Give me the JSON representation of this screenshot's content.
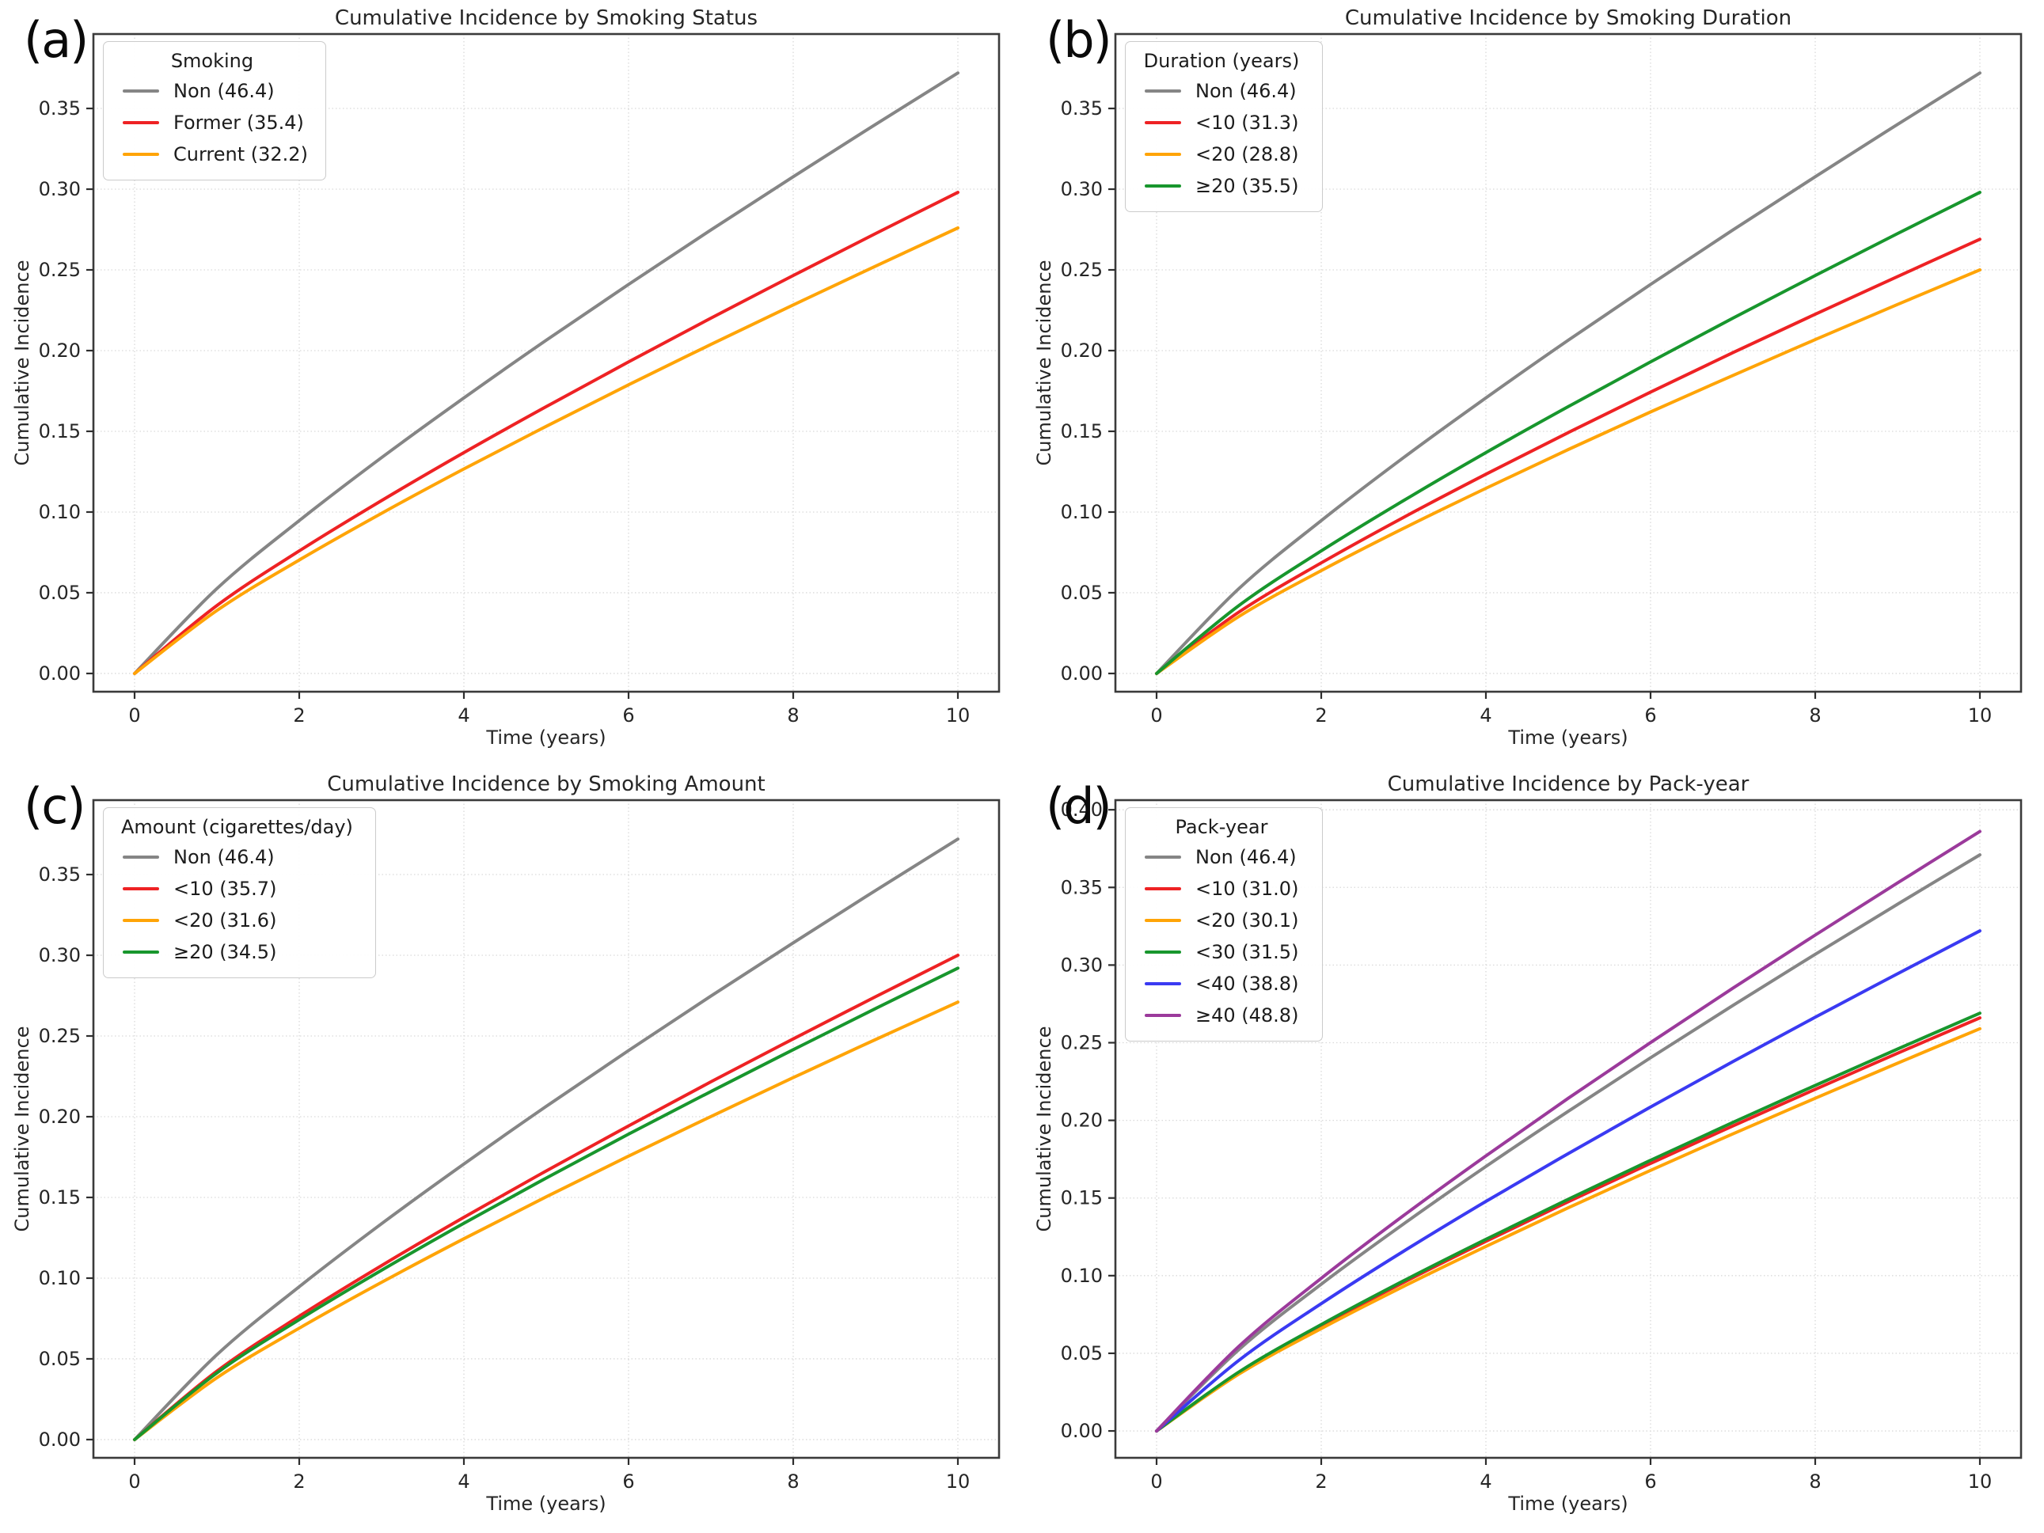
{
  "chart_data": [
    {
      "id": "a",
      "panel_label": "(a)",
      "type": "line",
      "title": "Cumulative Incidence by Smoking Status",
      "xlabel": "Time (years)",
      "ylabel": "Cumulative Incidence",
      "legend_title": "Smoking",
      "legend_position": "upper left",
      "grid": "dotted",
      "xlim": [
        -0.5,
        10.5
      ],
      "ylim": [
        -0.0113,
        0.3961
      ],
      "x_ticks": [
        0,
        2,
        4,
        6,
        8,
        10
      ],
      "y_ticks": [
        "0.00",
        "0.05",
        "0.10",
        "0.15",
        "0.20",
        "0.25",
        "0.30",
        "0.35"
      ],
      "x": [
        0,
        1,
        2,
        3,
        4,
        5,
        6,
        7,
        8,
        9,
        10
      ],
      "series": [
        {
          "name": "Non (46.4)",
          "color": "#858585",
          "values": [
            0,
            0.0526,
            0.0947,
            0.1337,
            0.1707,
            0.2064,
            0.241,
            0.2747,
            0.3077,
            0.3401,
            0.372
          ]
        },
        {
          "name": "Former (35.4)",
          "color": "#ee2224",
          "values": [
            0,
            0.0421,
            0.0759,
            0.1071,
            0.1368,
            0.1653,
            0.193,
            0.2201,
            0.2465,
            0.2725,
            0.298
          ]
        },
        {
          "name": "Current (32.2)",
          "color": "#ffa407",
          "values": [
            0,
            0.039,
            0.0703,
            0.0992,
            0.1267,
            0.1531,
            0.1788,
            0.2038,
            0.2283,
            0.2523,
            0.276
          ]
        }
      ]
    },
    {
      "id": "b",
      "panel_label": "(b)",
      "type": "line",
      "title": "Cumulative Incidence by Smoking Duration",
      "xlabel": "Time (years)",
      "ylabel": "Cumulative Incidence",
      "legend_title": "Duration (years)",
      "legend_position": "upper left",
      "grid": "dotted",
      "xlim": [
        -0.5,
        10.5
      ],
      "ylim": [
        -0.0113,
        0.3961
      ],
      "x_ticks": [
        0,
        2,
        4,
        6,
        8,
        10
      ],
      "y_ticks": [
        "0.00",
        "0.05",
        "0.10",
        "0.15",
        "0.20",
        "0.25",
        "0.30",
        "0.35"
      ],
      "x": [
        0,
        1,
        2,
        3,
        4,
        5,
        6,
        7,
        8,
        9,
        10
      ],
      "series": [
        {
          "name": "Non (46.4)",
          "color": "#858585",
          "values": [
            0,
            0.0526,
            0.0947,
            0.1337,
            0.1707,
            0.2064,
            0.241,
            0.2747,
            0.3077,
            0.3401,
            0.372
          ]
        },
        {
          "name": "<10 (31.3)",
          "color": "#ee2224",
          "values": [
            0,
            0.038,
            0.0685,
            0.0967,
            0.1234,
            0.1492,
            0.1743,
            0.1987,
            0.2225,
            0.2459,
            0.269
          ]
        },
        {
          "name": "<20 (28.8)",
          "color": "#ffa407",
          "values": [
            0,
            0.0353,
            0.0637,
            0.0899,
            0.1147,
            0.1387,
            0.162,
            0.1846,
            0.2068,
            0.2286,
            0.25
          ]
        },
        {
          "name": "≥20 (35.5)",
          "color": "#18962d",
          "values": [
            0,
            0.0421,
            0.0759,
            0.1071,
            0.1368,
            0.1653,
            0.193,
            0.2201,
            0.2465,
            0.2725,
            0.298
          ]
        }
      ]
    },
    {
      "id": "c",
      "panel_label": "(c)",
      "type": "line",
      "title": "Cumulative Incidence by Smoking Amount",
      "xlabel": "Time (years)",
      "ylabel": "Cumulative Incidence",
      "legend_title": "Amount (cigarettes/day)",
      "legend_position": "upper left",
      "grid": "dotted",
      "xlim": [
        -0.5,
        10.5
      ],
      "ylim": [
        -0.0113,
        0.3961
      ],
      "x_ticks": [
        0,
        2,
        4,
        6,
        8,
        10
      ],
      "y_ticks": [
        "0.00",
        "0.05",
        "0.10",
        "0.15",
        "0.20",
        "0.25",
        "0.30",
        "0.35"
      ],
      "x": [
        0,
        1,
        2,
        3,
        4,
        5,
        6,
        7,
        8,
        9,
        10
      ],
      "series": [
        {
          "name": "Non (46.4)",
          "color": "#858585",
          "values": [
            0,
            0.0526,
            0.0947,
            0.1337,
            0.1707,
            0.2064,
            0.241,
            0.2747,
            0.3077,
            0.3401,
            0.372
          ]
        },
        {
          "name": "<10 (35.7)",
          "color": "#ee2224",
          "values": [
            0,
            0.0424,
            0.0764,
            0.1078,
            0.1377,
            0.1664,
            0.1943,
            0.2216,
            0.2482,
            0.2743,
            0.3
          ]
        },
        {
          "name": "<20 (31.6)",
          "color": "#ffa407",
          "values": [
            0,
            0.0383,
            0.069,
            0.0974,
            0.1244,
            0.1504,
            0.1756,
            0.2001,
            0.2242,
            0.2478,
            0.271
          ]
        },
        {
          "name": "≥20 (34.5)",
          "color": "#18962d",
          "values": [
            0,
            0.0413,
            0.0743,
            0.1049,
            0.134,
            0.162,
            0.1892,
            0.2156,
            0.2415,
            0.267,
            0.292
          ]
        }
      ]
    },
    {
      "id": "d",
      "panel_label": "(d)",
      "type": "line",
      "title": "Cumulative Incidence by Pack-year",
      "xlabel": "Time (years)",
      "ylabel": "Cumulative Incidence",
      "legend_title": "Pack-year",
      "legend_position": "upper left",
      "grid": "dotted",
      "xlim": [
        -0.5,
        10.5
      ],
      "ylim": [
        -0.0173,
        0.4062
      ],
      "x_ticks": [
        0,
        2,
        4,
        6,
        8,
        10
      ],
      "y_ticks": [
        "0.00",
        "0.05",
        "0.10",
        "0.15",
        "0.20",
        "0.25",
        "0.30",
        "0.35",
        "0.40"
      ],
      "x": [
        0,
        1,
        2,
        3,
        4,
        5,
        6,
        7,
        8,
        9,
        10
      ],
      "series": [
        {
          "name": "Non (46.4)",
          "color": "#858585",
          "values": [
            0,
            0.0524,
            0.0945,
            0.1333,
            0.1703,
            0.2058,
            0.2403,
            0.274,
            0.3069,
            0.3392,
            0.371
          ]
        },
        {
          "name": "<10 (31.0)",
          "color": "#ee2224",
          "values": [
            0,
            0.0376,
            0.0677,
            0.0956,
            0.1221,
            0.1476,
            0.1723,
            0.1964,
            0.22,
            0.2432,
            0.266
          ]
        },
        {
          "name": "<20 (30.1)",
          "color": "#ffa407",
          "values": [
            0,
            0.0366,
            0.0659,
            0.0931,
            0.1188,
            0.1437,
            0.1678,
            0.1913,
            0.2142,
            0.2368,
            0.259
          ]
        },
        {
          "name": "<30 (31.5)",
          "color": "#18962d",
          "values": [
            0,
            0.038,
            0.0685,
            0.0967,
            0.1234,
            0.1492,
            0.1743,
            0.1987,
            0.2225,
            0.2459,
            0.269
          ]
        },
        {
          "name": "<40 (38.8)",
          "color": "#3a3af2",
          "values": [
            0,
            0.0455,
            0.082,
            0.1157,
            0.1478,
            0.1786,
            0.2086,
            0.2378,
            0.2664,
            0.2944,
            0.322
          ]
        },
        {
          "name": "≥40 (48.8)",
          "color": "#9b3a9b",
          "values": [
            0,
            0.0545,
            0.0983,
            0.1387,
            0.1771,
            0.2142,
            0.2501,
            0.2851,
            0.3193,
            0.3529,
            0.386
          ]
        }
      ]
    }
  ]
}
